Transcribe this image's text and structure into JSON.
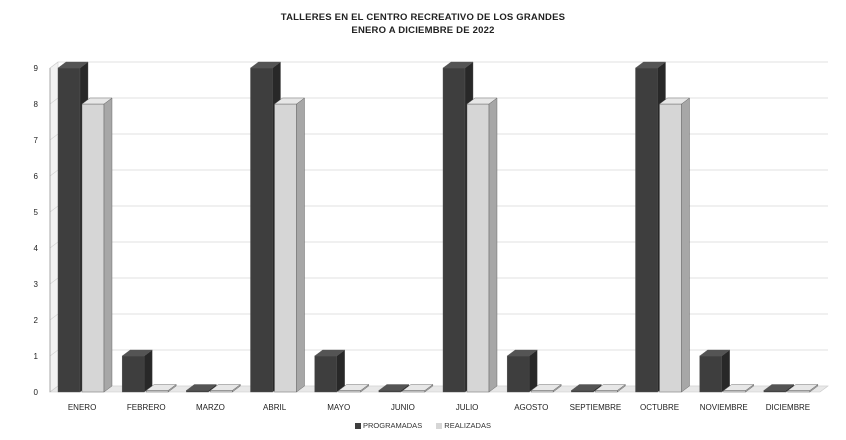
{
  "chart_data": {
    "type": "bar",
    "title": "TALLERES EN EL CENTRO RECREATIVO DE LOS GRANDES",
    "subtitle": "ENERO A DICIEMBRE DE 2022",
    "categories": [
      "ENERO",
      "FEBRERO",
      "MARZO",
      "ABRIL",
      "MAYO",
      "JUNIO",
      "JULIO",
      "AGOSTO",
      "SEPTIEMBRE",
      "OCTUBRE",
      "NOVIEMBRE",
      "DICIEMBRE"
    ],
    "series": [
      {
        "name": "PROGRAMADAS",
        "color": "#3e3e3e",
        "values": [
          9,
          1,
          0,
          9,
          1,
          0,
          9,
          1,
          0,
          9,
          1,
          0
        ]
      },
      {
        "name": "REALIZADAS",
        "color": "#d6d6d6",
        "values": [
          8,
          0,
          0,
          8,
          0,
          0,
          8,
          0,
          0,
          8,
          0,
          0
        ]
      }
    ],
    "yticks": [
      "0",
      "1",
      "2",
      "3",
      "4",
      "5",
      "6",
      "7",
      "8",
      "9"
    ],
    "ylim": [
      0,
      9
    ],
    "grid": true,
    "legend_position": "bottom"
  }
}
